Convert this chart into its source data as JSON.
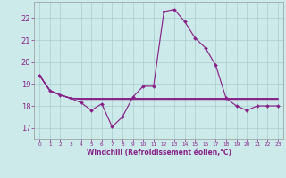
{
  "background_color": "#cceaea",
  "grid_color": "#aacccc",
  "line_color": "#882288",
  "x_hours": [
    0,
    1,
    2,
    3,
    4,
    5,
    6,
    7,
    8,
    9,
    10,
    11,
    12,
    13,
    14,
    15,
    16,
    17,
    18,
    19,
    20,
    21,
    22,
    23
  ],
  "temp_main": [
    19.4,
    18.7,
    18.5,
    18.35,
    18.15,
    17.8,
    18.1,
    17.05,
    17.5,
    18.4,
    18.9,
    18.9,
    22.3,
    22.4,
    21.85,
    21.1,
    20.65,
    19.85,
    18.35,
    18.0,
    17.8,
    18.0,
    18.0,
    18.0
  ],
  "line2": [
    19.4,
    18.7,
    18.5,
    18.35,
    18.3,
    18.3,
    18.3,
    18.3,
    18.3,
    18.3,
    18.3,
    18.3,
    18.3,
    18.3,
    18.3,
    18.3,
    18.3,
    18.3,
    18.3,
    18.3,
    18.3,
    18.3,
    18.3,
    18.3
  ],
  "line3": [
    19.4,
    18.7,
    18.5,
    18.35,
    18.32,
    18.32,
    18.32,
    18.32,
    18.32,
    18.32,
    18.32,
    18.32,
    18.32,
    18.32,
    18.32,
    18.32,
    18.32,
    18.32,
    18.32,
    18.32,
    18.32,
    18.32,
    18.32,
    18.32
  ],
  "line4": [
    19.4,
    18.7,
    18.5,
    18.35,
    18.34,
    18.34,
    18.34,
    18.34,
    18.34,
    18.34,
    18.34,
    18.34,
    18.34,
    18.34,
    18.34,
    18.34,
    18.34,
    18.34,
    18.34,
    18.34,
    18.34,
    18.34,
    18.34,
    18.34
  ],
  "xlabel": "Windchill (Refroidissement éolien,°C)",
  "ylim": [
    16.5,
    22.75
  ],
  "yticks": [
    17,
    18,
    19,
    20,
    21,
    22
  ],
  "xlabel_fontsize": 5.5,
  "ytick_fontsize": 6.0,
  "xtick_fontsize": 4.2
}
